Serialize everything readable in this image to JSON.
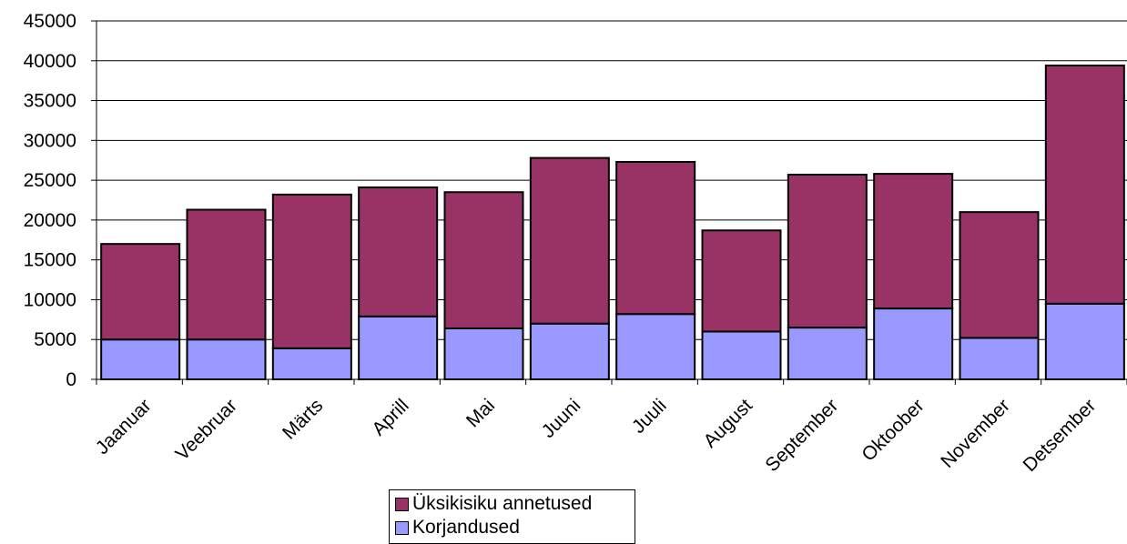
{
  "chart_data": {
    "type": "bar",
    "stacked": true,
    "categories": [
      "Jaanuar",
      "Veebruar",
      "Märts",
      "Aprill",
      "Mai",
      "Juuni",
      "Juuli",
      "August",
      "September",
      "Oktoober",
      "November",
      "Detsember"
    ],
    "series": [
      {
        "name": "Korjandused",
        "color": "#9999ff",
        "values": [
          5000,
          5000,
          3900,
          7900,
          6400,
          7000,
          8200,
          6000,
          6500,
          8900,
          5200,
          9500
        ]
      },
      {
        "name": "Üksikisiku annetused",
        "color": "#993366",
        "values": [
          12000,
          16300,
          19300,
          16200,
          17100,
          20800,
          19100,
          12700,
          19200,
          16900,
          15800,
          29900
        ]
      }
    ],
    "ylim": [
      0,
      45000
    ],
    "yticks": [
      "0",
      "5000",
      "10000",
      "15000",
      "20000",
      "25000",
      "30000",
      "35000",
      "40000",
      "45000"
    ],
    "grid": true,
    "legend_position": "bottom",
    "legend": [
      {
        "label": "Üksikisiku annetused",
        "color": "#993366"
      },
      {
        "label": "Korjandused",
        "color": "#9999ff"
      }
    ]
  }
}
